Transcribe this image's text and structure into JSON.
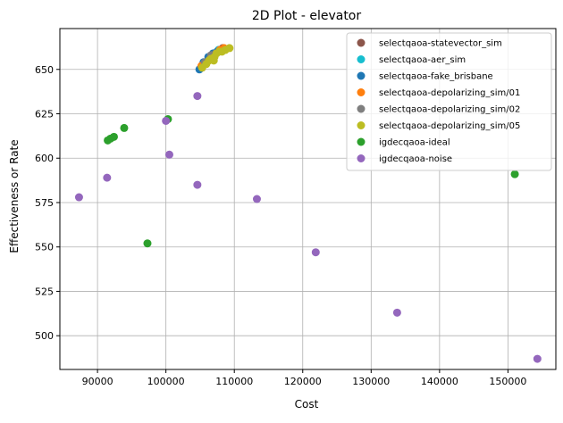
{
  "chart_data": {
    "type": "scatter",
    "title": "2D Plot - elevator",
    "xlabel": "Cost",
    "ylabel": "Effectiveness or Rate",
    "xlim": [
      84500,
      157000
    ],
    "ylim": [
      481,
      673
    ],
    "xticks": [
      90000,
      100000,
      110000,
      120000,
      130000,
      140000,
      150000
    ],
    "yticks": [
      500,
      525,
      550,
      575,
      600,
      625,
      650
    ],
    "grid": true,
    "legend_position": "top-right",
    "series": [
      {
        "name": "selectqaoa-statevector_sim",
        "color": "#8c564b",
        "points": [
          [
            105300,
            651
          ],
          [
            106400,
            657
          ],
          [
            107600,
            660
          ],
          [
            108300,
            662
          ]
        ]
      },
      {
        "name": "selectqaoa-aer_sim",
        "color": "#17becf",
        "points": [
          [
            105600,
            653
          ],
          [
            106700,
            657
          ],
          [
            107700,
            661
          ]
        ]
      },
      {
        "name": "selectqaoa-fake_brisbane",
        "color": "#1f77b4",
        "points": [
          [
            104900,
            650
          ],
          [
            105500,
            654
          ],
          [
            106200,
            657
          ],
          [
            106900,
            659
          ],
          [
            107500,
            660
          ]
        ]
      },
      {
        "name": "selectqaoa-depolarizing_sim/01",
        "color": "#ff7f0e",
        "points": [
          [
            105200,
            652
          ],
          [
            106500,
            656
          ],
          [
            107900,
            661
          ],
          [
            108500,
            662
          ]
        ]
      },
      {
        "name": "selectqaoa-depolarizing_sim/02",
        "color": "#7f7f7f",
        "points": [
          [
            105700,
            654
          ],
          [
            106600,
            658
          ],
          [
            107300,
            659
          ]
        ]
      },
      {
        "name": "selectqaoa-depolarizing_sim/05",
        "color": "#bcbd22",
        "points": [
          [
            105300,
            651
          ],
          [
            105900,
            653
          ],
          [
            106300,
            655
          ],
          [
            106600,
            656
          ],
          [
            107100,
            657
          ],
          [
            107000,
            655
          ],
          [
            107400,
            659
          ],
          [
            107800,
            660
          ],
          [
            108200,
            660
          ],
          [
            108700,
            661
          ],
          [
            109300,
            662
          ]
        ]
      },
      {
        "name": "igdecqaoa-ideal",
        "color": "#2ca02c",
        "points": [
          [
            91500,
            610
          ],
          [
            91900,
            611
          ],
          [
            92400,
            612
          ],
          [
            93900,
            617
          ],
          [
            100300,
            622
          ],
          [
            97300,
            552
          ],
          [
            151000,
            591
          ]
        ]
      },
      {
        "name": "igdecqaoa-noise",
        "color": "#9467bd",
        "points": [
          [
            87300,
            578
          ],
          [
            91400,
            589
          ],
          [
            100000,
            621
          ],
          [
            100500,
            602
          ],
          [
            104600,
            635
          ],
          [
            104600,
            585
          ],
          [
            113300,
            577
          ],
          [
            121900,
            547
          ],
          [
            133800,
            513
          ],
          [
            154300,
            487
          ]
        ]
      }
    ]
  }
}
